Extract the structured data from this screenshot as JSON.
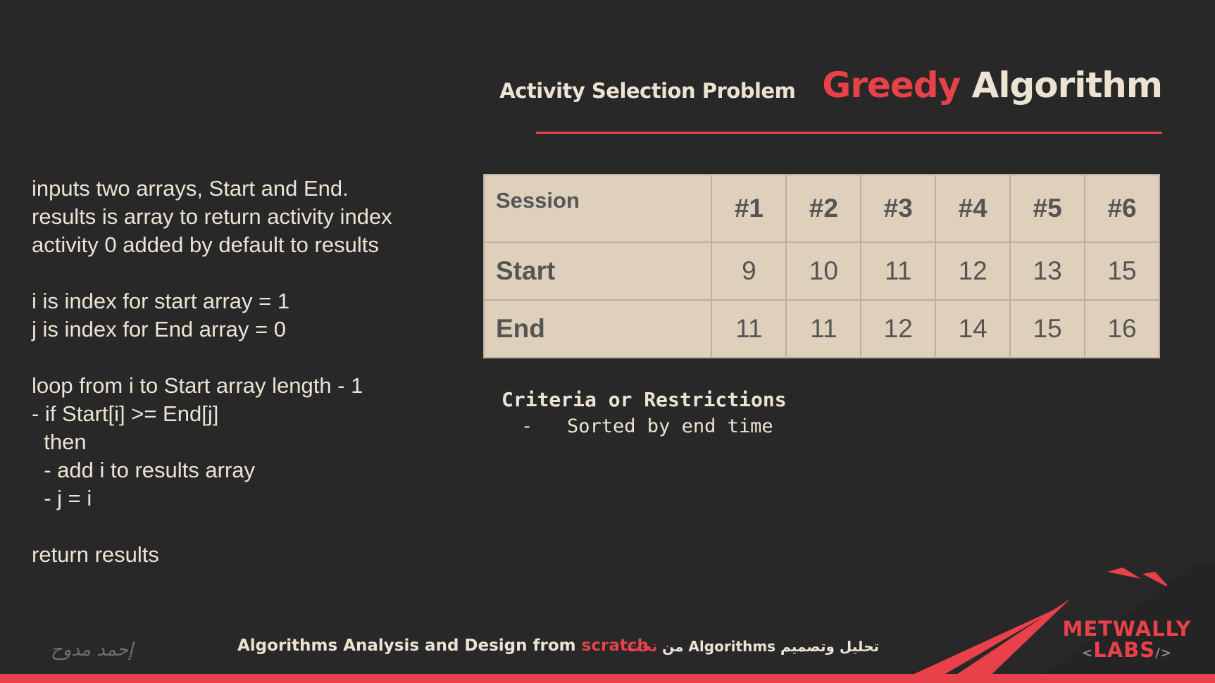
{
  "header": {
    "title_red": "Greedy",
    "title_rest": "Algorithm",
    "subtitle": "Activity Selection Problem"
  },
  "pseudocode": [
    "inputs two arrays, Start and End.",
    "results is array to return activity index",
    "activity 0 added by default to results",
    "",
    "i is index for start array = 1",
    "j is index for End array = 0",
    "",
    "loop from i to Start array length - 1",
    "- if Start[i] >= End[j]",
    "  then",
    "  - add i to results array",
    "  - j = i",
    "",
    "return results"
  ],
  "table": {
    "corner": "Session",
    "columns": [
      "#1",
      "#2",
      "#3",
      "#4",
      "#5",
      "#6"
    ],
    "rows": [
      {
        "label": "Start",
        "values": [
          "9",
          "10",
          "11",
          "12",
          "13",
          "15"
        ]
      },
      {
        "label": "End",
        "values": [
          "11",
          "11",
          "12",
          "14",
          "15",
          "16"
        ]
      }
    ]
  },
  "criteria": {
    "title": "Criteria or Restrictions",
    "items": [
      "-   Sorted by end time"
    ]
  },
  "footer": {
    "signature": "إحمد مدوح",
    "course_prefix": "Algorithms Analysis and Design from ",
    "course_highlight": "scratch",
    "arabic_main": "تحليل وتصميم Algorithms من ",
    "arabic_highlight": "تحت"
  },
  "logo": {
    "line1": "METWALLY",
    "line2": "LABS",
    "bracket_left": "<",
    "bracket_right": "/>"
  },
  "colors": {
    "background": "#282828",
    "accent": "#e8414a",
    "text": "#ece3d3",
    "table_bg": "#dfd0bb"
  }
}
